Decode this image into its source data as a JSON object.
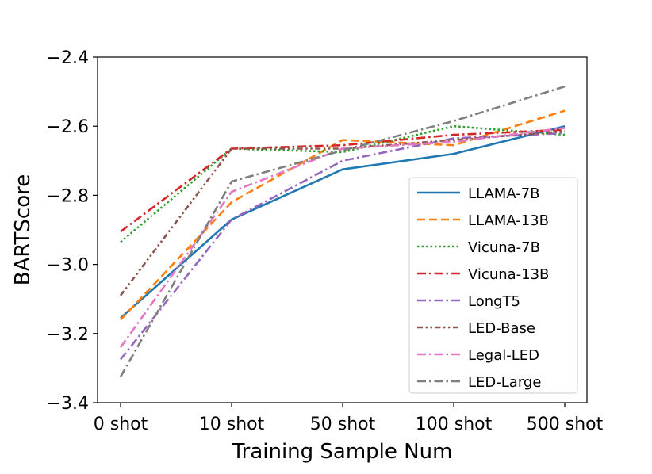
{
  "chart_data": {
    "type": "line",
    "title": "",
    "xlabel": "Training Sample Num",
    "ylabel": "BARTScore",
    "categories": [
      "0 shot",
      "10 shot",
      "50 shot",
      "100 shot",
      "500 shot"
    ],
    "ylim": [
      -3.4,
      -2.4
    ],
    "yticks": [
      -2.4,
      -2.6,
      -2.8,
      -3.0,
      -3.2,
      -3.4
    ],
    "ytick_labels": [
      "−2.4",
      "−2.6",
      "−2.8",
      "−3.0",
      "−3.2",
      "−3.4"
    ],
    "grid": false,
    "legend_position": "lower-right",
    "series": [
      {
        "name": "LLAMA-7B",
        "color": "#1f77b4",
        "dash": "solid",
        "values": [
          -3.155,
          -2.87,
          -2.725,
          -2.68,
          -2.6
        ]
      },
      {
        "name": "LLAMA-13B",
        "color": "#ff7f0e",
        "dash": "dashed",
        "values": [
          -3.16,
          -2.82,
          -2.64,
          -2.655,
          -2.555
        ]
      },
      {
        "name": "Vicuna-7B",
        "color": "#2ca02c",
        "dash": "dotted",
        "values": [
          -2.935,
          -2.665,
          -2.675,
          -2.6,
          -2.625
        ]
      },
      {
        "name": "Vicuna-13B",
        "color": "#d62728",
        "dash": "dashdot",
        "values": [
          -2.905,
          -2.665,
          -2.655,
          -2.625,
          -2.61
        ]
      },
      {
        "name": "LongT5",
        "color": "#9467bd",
        "dash": "dashdot",
        "values": [
          -3.275,
          -2.87,
          -2.7,
          -2.635,
          -2.62
        ]
      },
      {
        "name": "LED-Base",
        "color": "#8c564b",
        "dash": "dashdotdot",
        "values": [
          -3.09,
          -2.665,
          -2.665,
          -2.64,
          -2.615
        ]
      },
      {
        "name": "Legal-LED",
        "color": "#e377c2",
        "dash": "dashdot",
        "values": [
          -3.24,
          -2.79,
          -2.665,
          -2.645,
          -2.605
        ]
      },
      {
        "name": "LED-Large",
        "color": "#7f7f7f",
        "dash": "dashdot",
        "values": [
          -3.325,
          -2.76,
          -2.67,
          -2.585,
          -2.485
        ]
      }
    ]
  }
}
